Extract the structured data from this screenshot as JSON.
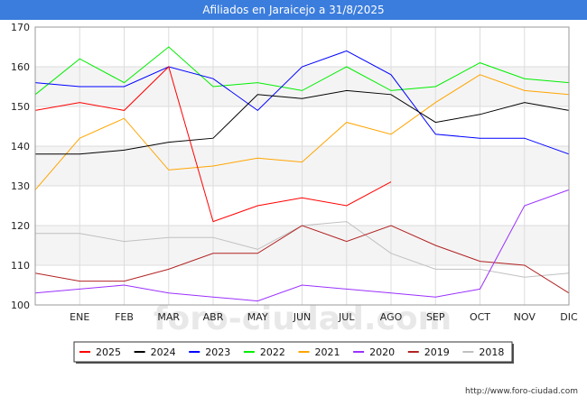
{
  "header": {
    "title": "Afiliados en Jaraicejo a 31/8/2025"
  },
  "footer": {
    "url": "http://www.foro-ciudad.com"
  },
  "watermark": "foro-ciudad.com",
  "chart_data": {
    "type": "line",
    "title": "Afiliados en Jaraicejo a 31/8/2025",
    "xlabel": "",
    "ylabel": "",
    "categories": [
      "",
      "ENE",
      "FEB",
      "MAR",
      "ABR",
      "MAY",
      "JUN",
      "JUL",
      "AGO",
      "SEP",
      "OCT",
      "NOV",
      "DIC"
    ],
    "ylim": [
      100,
      170
    ],
    "yticks": [
      100,
      110,
      120,
      130,
      140,
      150,
      160,
      170
    ],
    "grid": true,
    "legend_position": "bottom",
    "series": [
      {
        "name": "2025",
        "color": "#ff0000",
        "values": [
          149,
          151,
          149,
          160,
          121,
          125,
          127,
          125,
          131,
          null,
          null,
          null,
          null
        ]
      },
      {
        "name": "2024",
        "color": "#000000",
        "values": [
          138,
          138,
          139,
          141,
          142,
          153,
          152,
          154,
          153,
          146,
          148,
          151,
          149
        ]
      },
      {
        "name": "2023",
        "color": "#0000ff",
        "values": [
          156,
          155,
          155,
          160,
          157,
          149,
          160,
          164,
          158,
          143,
          142,
          142,
          138
        ]
      },
      {
        "name": "2022",
        "color": "#00ee00",
        "values": [
          153,
          162,
          156,
          165,
          155,
          156,
          154,
          160,
          154,
          155,
          161,
          157,
          156
        ]
      },
      {
        "name": "2021",
        "color": "#ffa500",
        "values": [
          129,
          142,
          147,
          134,
          135,
          137,
          136,
          146,
          143,
          151,
          158,
          154,
          153
        ]
      },
      {
        "name": "2020",
        "color": "#9b30ff",
        "values": [
          103,
          104,
          105,
          103,
          102,
          101,
          105,
          104,
          103,
          102,
          104,
          125,
          129
        ]
      },
      {
        "name": "2019",
        "color": "#b22222",
        "values": [
          108,
          106,
          106,
          109,
          113,
          113,
          120,
          116,
          120,
          115,
          111,
          110,
          103
        ]
      },
      {
        "name": "2018",
        "color": "#c0c0c0",
        "values": [
          118,
          118,
          116,
          117,
          117,
          114,
          120,
          121,
          113,
          109,
          109,
          107,
          108
        ]
      }
    ]
  }
}
